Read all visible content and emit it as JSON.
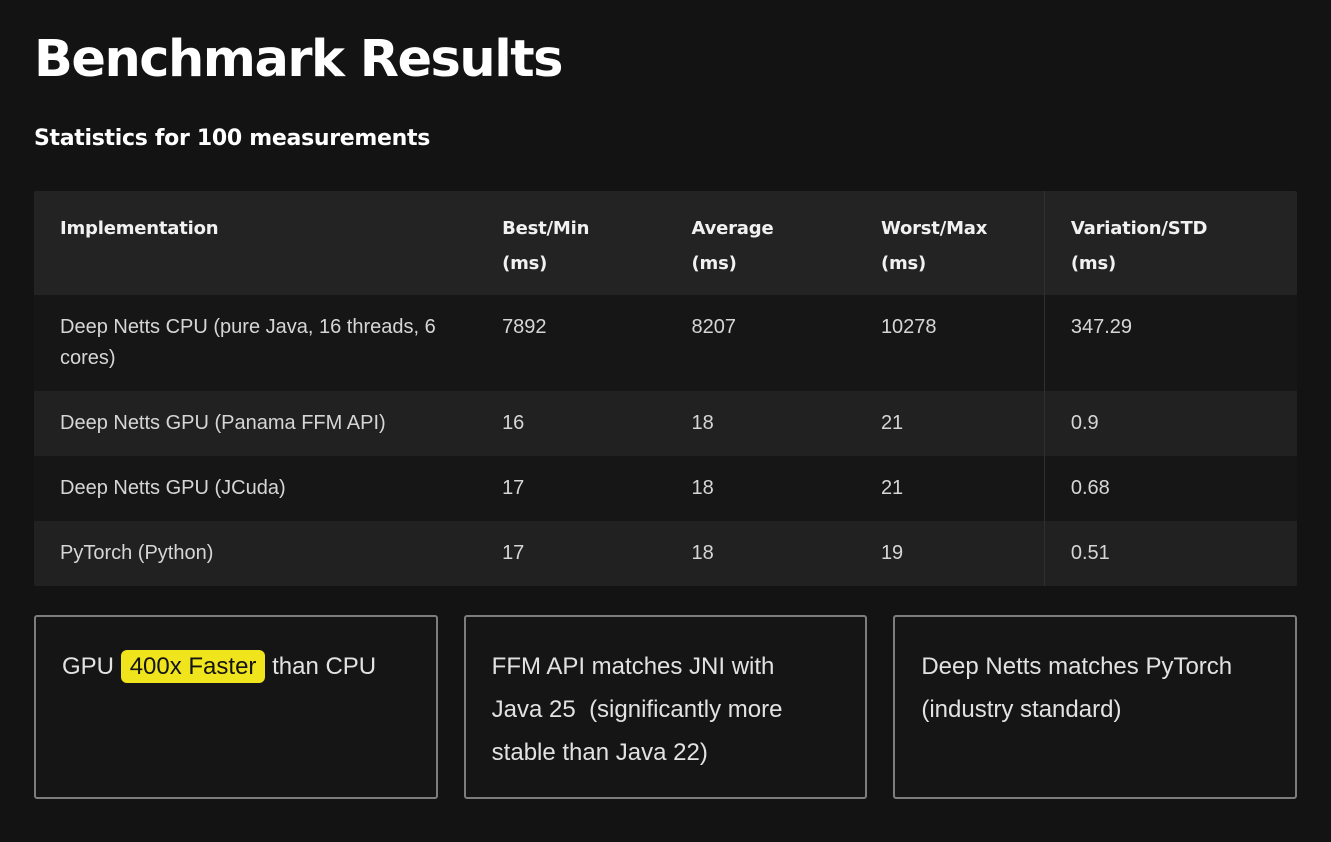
{
  "page": {
    "title": "Benchmark Results",
    "subtitle": "Statistics for 100 measurements"
  },
  "colors": {
    "page_bg": "#131313",
    "header_row_bg": "#232323",
    "row_dark_bg": "#161616",
    "row_light_bg": "#212121",
    "highlight_bg": "#f0e41c",
    "highlight_text": "#141414",
    "box_border": "#7d7d7d"
  },
  "table": {
    "columns": [
      {
        "label": "Implementation",
        "unit": ""
      },
      {
        "label": "Best/Min",
        "unit": "(ms)"
      },
      {
        "label": "Average",
        "unit": "(ms)"
      },
      {
        "label": "Worst/Max",
        "unit": "(ms)"
      },
      {
        "label": "Variation/STD",
        "unit": "(ms)"
      }
    ],
    "rows": [
      {
        "cells": [
          "Deep Netts CPU (pure Java, 16 threads, 6 cores)",
          "7892",
          "8207",
          "10278",
          "347.29"
        ]
      },
      {
        "cells": [
          "Deep Netts GPU (Panama FFM API)",
          "16",
          "18",
          "21",
          "0.9"
        ]
      },
      {
        "cells": [
          "Deep Netts GPU (JCuda)",
          "17",
          "18",
          "21",
          "0.68"
        ]
      },
      {
        "cells": [
          "PyTorch (Python)",
          "17",
          "18",
          "19",
          "0.51"
        ]
      }
    ]
  },
  "callouts": [
    {
      "prefix": "GPU ",
      "highlight": "400x Faster",
      "suffix": " than CPU"
    },
    {
      "text": "FFM API matches JNI with Java 25  (significantly more stable than Java 22)"
    },
    {
      "text": "Deep Netts matches PyTorch (industry standard)"
    }
  ],
  "chart_data": {
    "type": "table",
    "title": "Benchmark Results",
    "subtitle": "Statistics for 100 measurements",
    "columns": [
      "Implementation",
      "Best/Min (ms)",
      "Average (ms)",
      "Worst/Max (ms)",
      "Variation/STD (ms)"
    ],
    "rows": [
      [
        "Deep Netts CPU (pure Java, 16 threads, 6 cores)",
        7892,
        8207,
        10278,
        347.29
      ],
      [
        "Deep Netts GPU (Panama FFM API)",
        16,
        18,
        21,
        0.9
      ],
      [
        "Deep Netts GPU (JCuda)",
        17,
        18,
        21,
        0.68
      ],
      [
        "PyTorch (Python)",
        17,
        18,
        19,
        0.51
      ]
    ]
  }
}
